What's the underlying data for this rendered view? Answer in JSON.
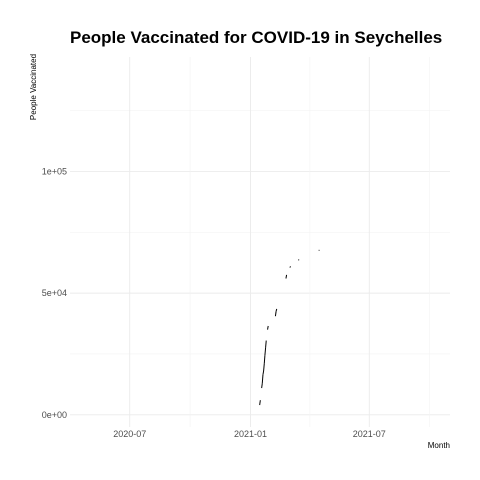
{
  "chart_data": {
    "type": "line",
    "title": "People Vaccinated for COVID-19 in Seychelles",
    "xlabel": "Month",
    "ylabel": "People Vaccinated",
    "x_ticks": [
      "2020-07",
      "2021-01",
      "2021-07"
    ],
    "y_ticks": [
      "0e+00",
      "5e+04",
      "1e+05"
    ],
    "xlim": [
      "2020-04-01",
      "2021-11-01"
    ],
    "ylim": [
      -5000,
      147000
    ],
    "grid": true,
    "legend": "none",
    "series": [
      {
        "values": [
          {
            "x": "2021-01-15",
            "y": 4000
          },
          {
            "x": "2021-01-16",
            "y": 6000
          },
          {
            "x": "2021-01-18",
            "y": 11000
          },
          {
            "x": "2021-01-19",
            "y": 13000
          },
          {
            "x": "2021-01-20",
            "y": 16500
          },
          {
            "x": "2021-01-21",
            "y": 18000
          },
          {
            "x": "2021-01-22",
            "y": 21000
          },
          {
            "x": "2021-01-23",
            "y": 24500
          },
          {
            "x": "2021-01-24",
            "y": 27500
          },
          {
            "x": "2021-01-25",
            "y": 30500
          },
          {
            "x": "2021-01-27",
            "y": 35000
          },
          {
            "x": "2021-01-28",
            "y": 36500
          },
          {
            "x": "2021-01-31",
            "y": 37500
          },
          {
            "x": "2021-02-03",
            "y": 38000
          },
          {
            "x": "2021-02-08",
            "y": 40500
          },
          {
            "x": "2021-02-09",
            "y": 42500
          },
          {
            "x": "2021-02-10",
            "y": 43500
          },
          {
            "x": "2021-02-24",
            "y": 56000
          },
          {
            "x": "2021-02-25",
            "y": 57500
          },
          {
            "x": "2021-03-02",
            "y": 60500
          },
          {
            "x": "2021-03-03",
            "y": 61000
          },
          {
            "x": "2021-03-15",
            "y": 63500
          },
          {
            "x": "2021-03-16",
            "y": 63800
          },
          {
            "x": "2021-04-15",
            "y": 67500
          },
          {
            "x": "2021-04-16",
            "y": 67700
          }
        ]
      }
    ]
  }
}
